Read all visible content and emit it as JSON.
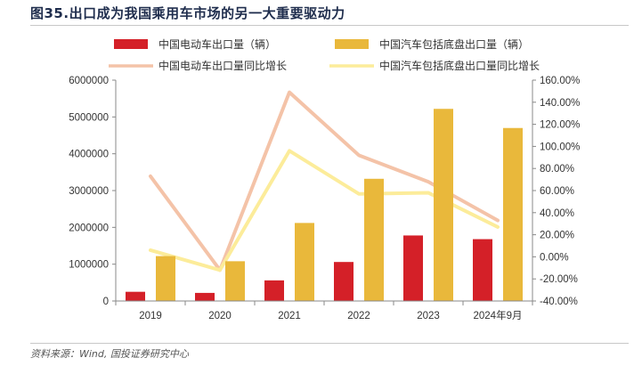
{
  "figure": {
    "title": "图35.出口成为我国乘用车市场的另一大重要驱动力",
    "source": "资料来源：Wind, 国投证券研究中心"
  },
  "chart_data": {
    "type": "bar",
    "categories": [
      "2019",
      "2020",
      "2021",
      "2022",
      "2023",
      "2024年9月"
    ],
    "series": [
      {
        "name": "中国电动车出口量（辆）",
        "kind": "bar",
        "axis": "left",
        "color": "#d42028",
        "values": [
          250000,
          220000,
          560000,
          1060000,
          1780000,
          1680000
        ]
      },
      {
        "name": "中国汽车包括底盘出口量（辆）",
        "kind": "bar",
        "axis": "left",
        "color": "#e9b83b",
        "values": [
          1220000,
          1080000,
          2120000,
          3320000,
          5220000,
          4700000
        ]
      },
      {
        "name": "中国电动车出口量同比增长",
        "kind": "line",
        "axis": "right",
        "color": "#f4c3a8",
        "values": [
          73,
          -12,
          149,
          92,
          68,
          33
        ]
      },
      {
        "name": "中国汽车包括底盘出口量同比增长",
        "kind": "line",
        "axis": "right",
        "color": "#fcec9a",
        "values": [
          6,
          -12,
          96,
          57,
          58,
          27
        ]
      }
    ],
    "y_left": {
      "min": 0,
      "max": 6000000,
      "step": 1000000,
      "ticks": [
        "0",
        "1000000",
        "2000000",
        "3000000",
        "4000000",
        "5000000",
        "6000000"
      ]
    },
    "y_right": {
      "min": -40,
      "max": 160,
      "step": 20,
      "ticks": [
        "-40.00%",
        "-20.00%",
        "0.00%",
        "20.00%",
        "40.00%",
        "60.00%",
        "80.00%",
        "100.00%",
        "120.00%",
        "140.00%",
        "160.00%"
      ]
    },
    "grid": false,
    "legend_position": "top"
  }
}
